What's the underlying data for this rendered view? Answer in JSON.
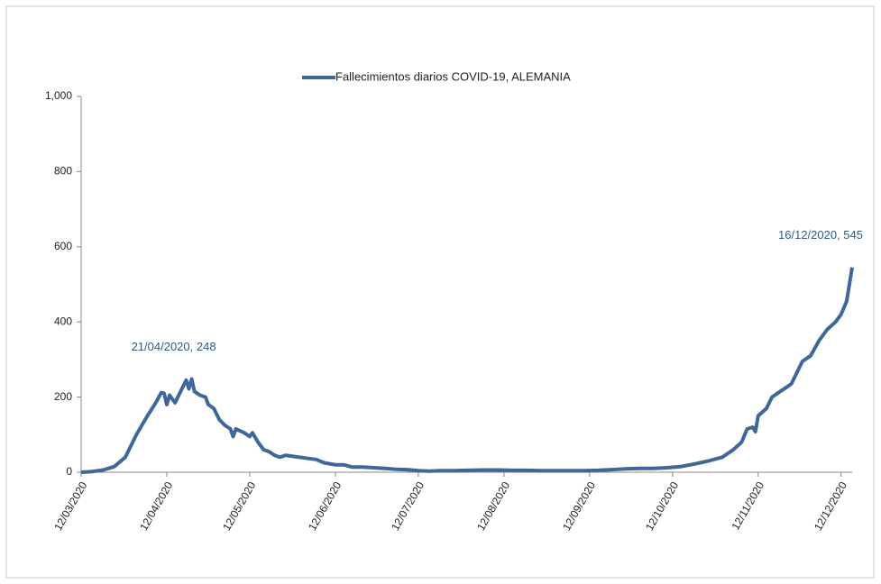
{
  "chart_data": {
    "type": "line",
    "series": [
      {
        "name": "Fallecimientos diarios COVID-19, ALEMANIA",
        "color": "#3f679a",
        "x": [
          "12/03/2020",
          "16/03/2020",
          "20/03/2020",
          "24/03/2020",
          "28/03/2020",
          "01/04/2020",
          "05/04/2020",
          "08/04/2020",
          "10/04/2020",
          "11/04/2020",
          "12/04/2020",
          "13/04/2020",
          "15/04/2020",
          "17/04/2020",
          "19/04/2020",
          "20/04/2020",
          "21/04/2020",
          "22/04/2020",
          "24/04/2020",
          "26/04/2020",
          "27/04/2020",
          "29/04/2020",
          "01/05/2020",
          "03/05/2020",
          "05/05/2020",
          "06/05/2020",
          "07/05/2020",
          "10/05/2020",
          "12/05/2020",
          "13/05/2020",
          "15/05/2020",
          "17/05/2020",
          "19/05/2020",
          "21/05/2020",
          "23/05/2020",
          "25/05/2020",
          "28/05/2020",
          "01/06/2020",
          "05/06/2020",
          "08/06/2020",
          "12/06/2020",
          "15/06/2020",
          "18/06/2020",
          "22/06/2020",
          "26/06/2020",
          "30/06/2020",
          "04/07/2020",
          "08/07/2020",
          "12/07/2020",
          "16/07/2020",
          "20/07/2020",
          "25/07/2020",
          "30/07/2020",
          "05/08/2020",
          "10/08/2020",
          "15/08/2020",
          "20/08/2020",
          "25/08/2020",
          "30/08/2020",
          "05/09/2020",
          "10/09/2020",
          "15/09/2020",
          "20/09/2020",
          "25/09/2020",
          "30/09/2020",
          "05/10/2020",
          "10/10/2020",
          "15/10/2020",
          "20/10/2020",
          "25/10/2020",
          "30/10/2020",
          "03/11/2020",
          "06/11/2020",
          "08/11/2020",
          "10/11/2020",
          "11/11/2020",
          "12/11/2020",
          "15/11/2020",
          "17/11/2020",
          "20/11/2020",
          "24/11/2020",
          "28/11/2020",
          "01/12/2020",
          "04/12/2020",
          "07/12/2020",
          "10/12/2020",
          "12/12/2020",
          "14/12/2020",
          "16/12/2020"
        ],
        "values": [
          0,
          2,
          6,
          15,
          40,
          100,
          150,
          185,
          212,
          210,
          180,
          205,
          185,
          215,
          245,
          222,
          248,
          215,
          205,
          200,
          180,
          170,
          140,
          125,
          115,
          95,
          115,
          105,
          95,
          105,
          80,
          60,
          55,
          45,
          40,
          45,
          42,
          38,
          34,
          25,
          20,
          20,
          14,
          14,
          12,
          10,
          8,
          7,
          4,
          3,
          4,
          4,
          5,
          6,
          6,
          5,
          5,
          4,
          4,
          4,
          4,
          5,
          7,
          9,
          10,
          10,
          12,
          15,
          22,
          30,
          40,
          60,
          80,
          115,
          120,
          108,
          150,
          170,
          200,
          215,
          235,
          295,
          310,
          350,
          380,
          400,
          420,
          455,
          545
        ]
      }
    ],
    "annotations": [
      {
        "text": "21/04/2020, 248",
        "x": "21/04/2020"
      },
      {
        "text": "16/12/2020, 545",
        "x": "16/12/2020"
      }
    ],
    "xlim": [
      "12/03/2020",
      "16/12/2020"
    ],
    "xticks": [
      "12/03/2020",
      "12/04/2020",
      "12/05/2020",
      "12/06/2020",
      "12/07/2020",
      "12/08/2020",
      "12/09/2020",
      "12/10/2020",
      "12/11/2020",
      "12/12/2020"
    ],
    "ylim": [
      0,
      1000
    ],
    "yticks": [
      0,
      200,
      400,
      600,
      800,
      {
        "value": 1000,
        "label": "1,000"
      }
    ],
    "grid": false
  }
}
